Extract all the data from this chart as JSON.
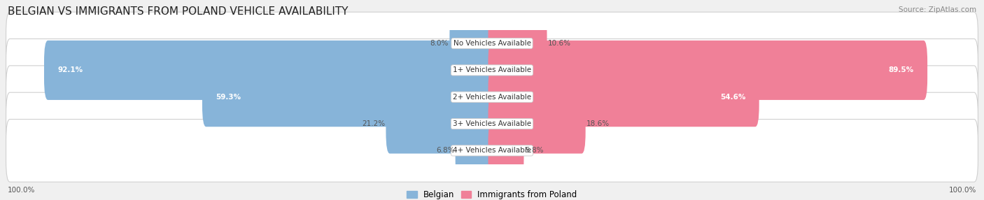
{
  "title": "BELGIAN VS IMMIGRANTS FROM POLAND VEHICLE AVAILABILITY",
  "source": "Source: ZipAtlas.com",
  "categories": [
    "No Vehicles Available",
    "1+ Vehicles Available",
    "2+ Vehicles Available",
    "3+ Vehicles Available",
    "4+ Vehicles Available"
  ],
  "belgian_values": [
    8.0,
    92.1,
    59.3,
    21.2,
    6.8
  ],
  "poland_values": [
    10.6,
    89.5,
    54.6,
    18.6,
    5.8
  ],
  "belgian_color": "#87B4D9",
  "poland_color": "#F08098",
  "belgian_label": "Belgian",
  "poland_label": "Immigrants from Poland",
  "bg_color": "#f0f0f0",
  "max_value": 100.0,
  "x_left_label": "100.0%",
  "x_right_label": "100.0%",
  "title_fontsize": 11,
  "bar_height": 0.62
}
